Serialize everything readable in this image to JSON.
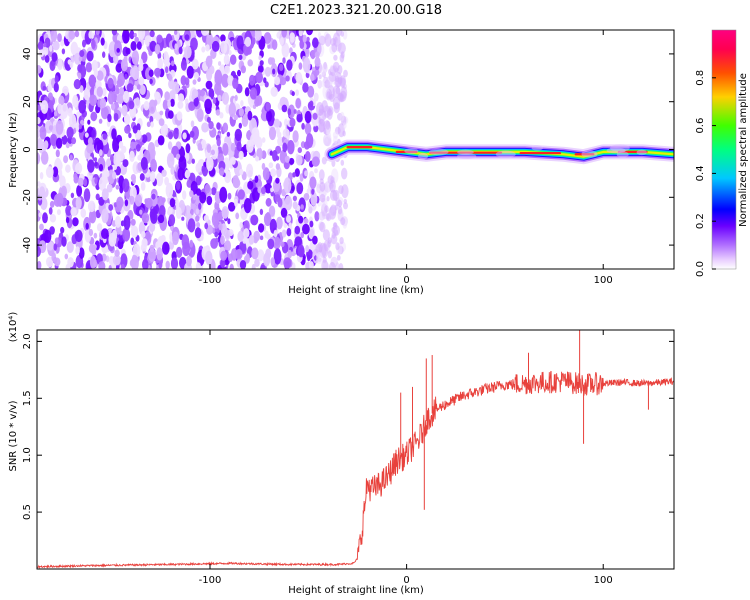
{
  "figure": {
    "title": "C2E1.2023.321.20.00.G18"
  },
  "chart_data": [
    {
      "type": "heatmap",
      "title": "C2E1.2023.321.20.00.G18",
      "xlabel": "Height of straight line (km)",
      "ylabel": "Frequency (Hz)",
      "xlim": [
        -188,
        136
      ],
      "ylim": [
        -50,
        50
      ],
      "x_ticks": [
        -100,
        0,
        100
      ],
      "y_ticks": [
        -40,
        -20,
        0,
        20,
        40
      ],
      "x_tick_labels": [
        "-100",
        "0",
        "100"
      ],
      "y_tick_labels": [
        "-40",
        "-20",
        "0",
        "20",
        "40"
      ],
      "noise_region_x": [
        -188,
        -33
      ],
      "carrier_region_x": [
        -38,
        136
      ],
      "carrier_freq_hz": [
        {
          "x": -38,
          "y": -2
        },
        {
          "x": -30,
          "y": 1
        },
        {
          "x": -20,
          "y": 1
        },
        {
          "x": -10,
          "y": 0
        },
        {
          "x": 0,
          "y": -1
        },
        {
          "x": 10,
          "y": -2
        },
        {
          "x": 20,
          "y": -1
        },
        {
          "x": 40,
          "y": -1
        },
        {
          "x": 60,
          "y": -1
        },
        {
          "x": 80,
          "y": -2
        },
        {
          "x": 90,
          "y": -3
        },
        {
          "x": 100,
          "y": -1
        },
        {
          "x": 120,
          "y": -1
        },
        {
          "x": 136,
          "y": -2
        }
      ],
      "colorbar": {
        "label": "Normalized spectral amplitude",
        "range": [
          0,
          1
        ],
        "ticks": [
          0.0,
          0.2,
          0.4,
          0.6,
          0.8
        ],
        "tick_labels": [
          "0.0",
          "0.2",
          "0.4",
          "0.6",
          "0.8"
        ],
        "colors": [
          "#ffffff",
          "#d9b3ff",
          "#a855ff",
          "#6a00ff",
          "#0000ff",
          "#00c8ff",
          "#00ff80",
          "#40ff00",
          "#ffd000",
          "#ff5000",
          "#ff0060",
          "#ff0080"
        ]
      },
      "grid": false
    },
    {
      "type": "line",
      "xlabel": "Height of straight line (km)",
      "ylabel": "SNR (10 * v/v)",
      "y_multiplier": "(x10⁴)",
      "xlim": [
        -188,
        136
      ],
      "ylim": [
        0,
        2.1
      ],
      "x_ticks": [
        -100,
        0,
        100
      ],
      "y_ticks": [
        0.5,
        1.0,
        1.5,
        2.0
      ],
      "x_tick_labels": [
        "-100",
        "0",
        "100"
      ],
      "y_tick_labels": [
        "0.5",
        "1.0",
        "1.5",
        "2.0"
      ],
      "line_color": "#e8413c",
      "series": [
        {
          "x": [
            -188,
            -160,
            -120,
            -90,
            -60,
            -35,
            -27,
            -25,
            -23,
            -20,
            -18,
            -15,
            -10,
            -5,
            0,
            2,
            5,
            8,
            10,
            12,
            15,
            20,
            30,
            40,
            50,
            60,
            70,
            80,
            90,
            100,
            110,
            120,
            130,
            136
          ],
          "y": [
            0.02,
            0.03,
            0.04,
            0.05,
            0.04,
            0.04,
            0.05,
            0.09,
            0.3,
            0.75,
            0.7,
            0.72,
            0.8,
            0.95,
            1.0,
            1.05,
            1.1,
            1.2,
            1.3,
            1.35,
            1.4,
            1.45,
            1.53,
            1.58,
            1.62,
            1.63,
            1.64,
            1.65,
            1.62,
            1.63,
            1.64,
            1.63,
            1.64,
            1.65
          ]
        }
      ],
      "spikes": [
        {
          "x": -3,
          "y": 1.55
        },
        {
          "x": 3,
          "y": 1.6
        },
        {
          "x": 9,
          "y": 0.52
        },
        {
          "x": 10,
          "y": 1.85
        },
        {
          "x": 13,
          "y": 1.88
        },
        {
          "x": 62,
          "y": 1.9
        },
        {
          "x": 88,
          "y": 2.1
        },
        {
          "x": 90,
          "y": 1.1
        },
        {
          "x": 123,
          "y": 1.4
        }
      ],
      "grid": false
    }
  ]
}
